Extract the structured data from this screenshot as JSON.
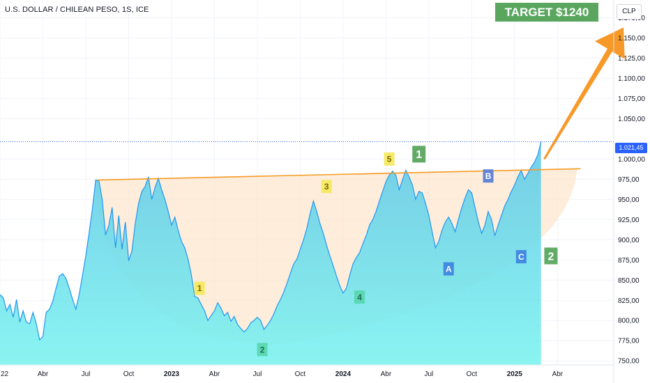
{
  "header": {
    "symbol": "U.S. DOLLAR / CHILEAN PESO, 1S, ICE",
    "currency": "CLP",
    "last_price": "1.021,45",
    "target": "TARGET $1240"
  },
  "colors": {
    "line": "#2196f3",
    "area_top": "#64c8e6",
    "area_bottom": "#7df3f0",
    "neckline": "#f59a23",
    "cup_fill": "#fde3c8",
    "arrow": "#f7931e",
    "yellow_label": "#f5e960",
    "green_label": "#5aa65f",
    "teal_label": "#4fd1a0",
    "blue_label": "#3f86e0",
    "purple_label": "#5b7fd6"
  },
  "axes": {
    "x_ticks": [
      "22",
      "Abr",
      "Jul",
      "Oct",
      "2023",
      "Abr",
      "Jul",
      "Oct",
      "2024",
      "Abr",
      "Jul",
      "Oct",
      "2025",
      "Abr"
    ],
    "y_ticks": [
      "1.175,00",
      "1.150,00",
      "1.125,00",
      "1.100,00",
      "1.075,00",
      "1.050,00",
      "1.000,00",
      "975,00",
      "950,00",
      "925,00",
      "900,00",
      "875,00",
      "850,00",
      "825,00",
      "800,00",
      "775,00",
      "750,00"
    ]
  },
  "wave_labels": [
    {
      "text": "1",
      "style": "yellow",
      "week": 60.5,
      "price": 840
    },
    {
      "text": "2",
      "style": "teal",
      "week": 79.5,
      "price": 764
    },
    {
      "text": "3",
      "style": "yellow",
      "week": 99,
      "price": 966
    },
    {
      "text": "4",
      "style": "teal",
      "week": 109,
      "price": 829
    },
    {
      "text": "5",
      "style": "yellow",
      "week": 118,
      "price": 1000
    },
    {
      "text": "1",
      "style": "green",
      "week": 127,
      "price": 1006
    },
    {
      "text": "A",
      "style": "blue",
      "week": 136,
      "price": 864
    },
    {
      "text": "B",
      "style": "purple",
      "week": 148,
      "price": 979
    },
    {
      "text": "C",
      "style": "blue",
      "week": 158,
      "price": 879
    },
    {
      "text": "2",
      "style": "green",
      "week": 167,
      "price": 880
    }
  ],
  "annotations": {
    "neckline": {
      "start_week": 29.5,
      "start_price": 974,
      "end_week": 176,
      "end_price": 988
    },
    "arrow": {
      "start_week": 165,
      "start_price": 1000,
      "end_week": 189,
      "end_price": 1163
    }
  },
  "chart_data": {
    "type": "area",
    "title": "U.S. DOLLAR / CHILEAN PESO, 1S, ICE",
    "xlabel": "",
    "ylabel": "",
    "ylim": [
      745,
      1197
    ],
    "x_start": "2022-01-03",
    "x_interval": "1 week",
    "last_value": 1021.45,
    "series": [
      {
        "values": [
          832,
          828,
          812,
          820,
          804,
          826,
          798,
          812,
          798,
          796,
          810,
          796,
          776,
          780,
          810,
          814,
          824,
          840,
          855,
          858,
          852,
          840,
          826,
          814,
          832,
          856,
          880,
          908,
          938,
          974,
          973,
          950,
          906,
          918,
          940,
          890,
          930,
          888,
          922,
          874,
          886,
          920,
          945,
          960,
          966,
          978,
          950,
          965,
          976,
          962,
          950,
          935,
          918,
          928,
          912,
          898,
          890,
          876,
          857,
          830,
          828,
          820,
          812,
          800,
          806,
          812,
          822,
          815,
          806,
          810,
          799,
          805,
          795,
          790,
          786,
          790,
          797,
          800,
          804,
          800,
          789,
          794,
          800,
          808,
          818,
          826,
          835,
          846,
          858,
          870,
          876,
          888,
          900,
          914,
          932,
          948,
          935,
          920,
          908,
          893,
          880,
          868,
          855,
          843,
          834,
          840,
          856,
          870,
          878,
          884,
          895,
          905,
          918,
          925,
          935,
          948,
          960,
          972,
          980,
          985,
          980,
          962,
          974,
          986,
          978,
          968,
          950,
          960,
          958,
          945,
          930,
          910,
          890,
          898,
          912,
          922,
          928,
          920,
          910,
          926,
          940,
          952,
          962,
          958,
          940,
          922,
          908,
          918,
          935,
          925,
          905,
          918,
          930,
          942,
          950,
          960,
          968,
          978,
          986,
          975,
          982,
          990,
          996,
          1005,
          1021.45
        ]
      }
    ]
  }
}
